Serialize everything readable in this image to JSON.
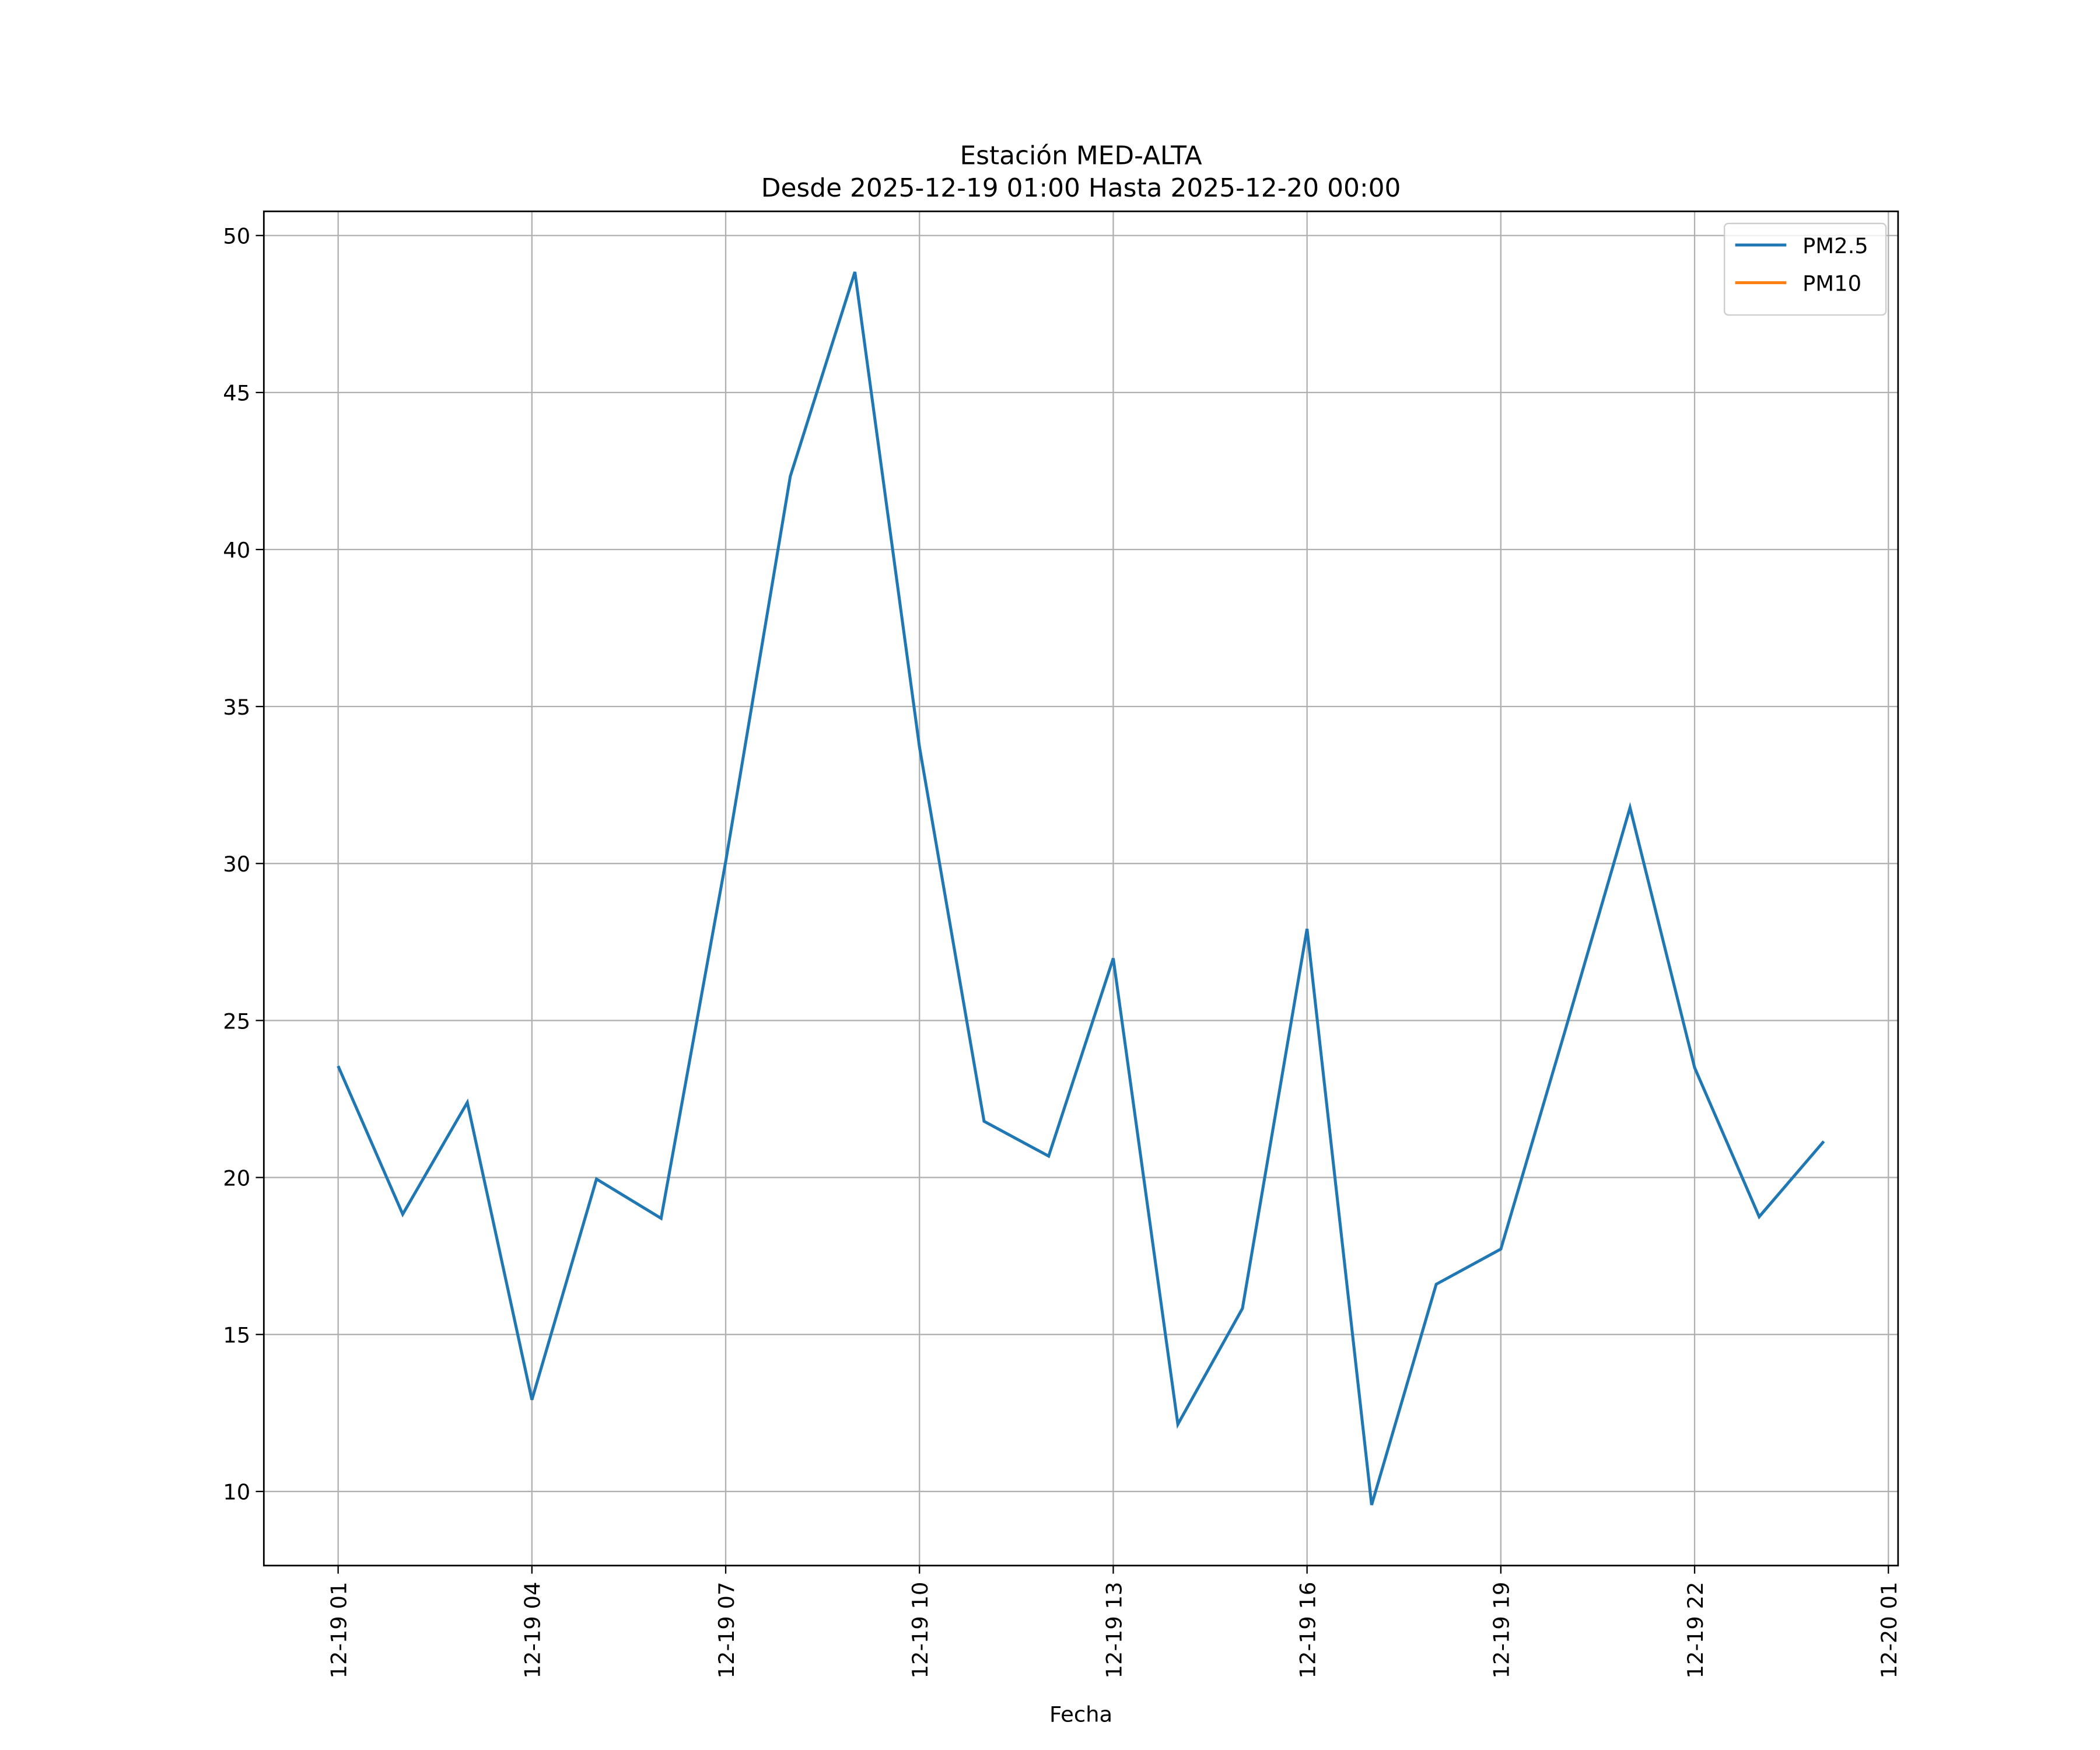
{
  "chart_data": {
    "type": "line",
    "title": "Estación MED-ALTA",
    "subtitle": "Desde 2025-12-19 01:00 Hasta 2025-12-20 00:00",
    "x_label": "Fecha",
    "x": [
      "12-19 01",
      "12-19 02",
      "12-19 03",
      "12-19 04",
      "12-19 05",
      "12-19 06",
      "12-19 07",
      "12-19 08",
      "12-19 09",
      "12-19 10",
      "12-19 11",
      "12-19 12",
      "12-19 13",
      "12-19 14",
      "12-19 15",
      "12-19 16",
      "12-19 17",
      "12-19 18",
      "12-19 19",
      "12-19 20",
      "12-19 21",
      "12-19 22",
      "12-19 23",
      "12-20 00"
    ],
    "series": [
      {
        "name": "PM2.5",
        "color": "#1f77b4",
        "values": [
          23.55,
          18.83,
          22.39,
          12.92,
          19.95,
          18.7,
          30.06,
          42.33,
          48.84,
          33.71,
          21.79,
          20.68,
          26.98,
          12.14,
          15.83,
          27.92,
          9.57,
          16.6,
          17.72,
          24.71,
          31.78,
          23.5,
          18.75,
          21.15
        ]
      },
      {
        "name": "PM10",
        "color": "#ff7f0e",
        "values": [
          null,
          null,
          null,
          null,
          null,
          null,
          null,
          null,
          null,
          null,
          null,
          null,
          null,
          null,
          null,
          null,
          null,
          null,
          null,
          null,
          null,
          null,
          null,
          null
        ]
      }
    ],
    "xlim": [
      "12-18 23:51",
      "12-20 01:09"
    ],
    "xticks": [
      "12-19 01",
      "12-19 04",
      "12-19 07",
      "12-19 10",
      "12-19 13",
      "12-19 16",
      "12-19 19",
      "12-19 22",
      "12-20 01"
    ],
    "ylim": [
      7.64,
      50.77
    ],
    "yticks": [
      10,
      15,
      20,
      25,
      30,
      35,
      40,
      45,
      50
    ],
    "grid": true,
    "legend": "upper right"
  }
}
